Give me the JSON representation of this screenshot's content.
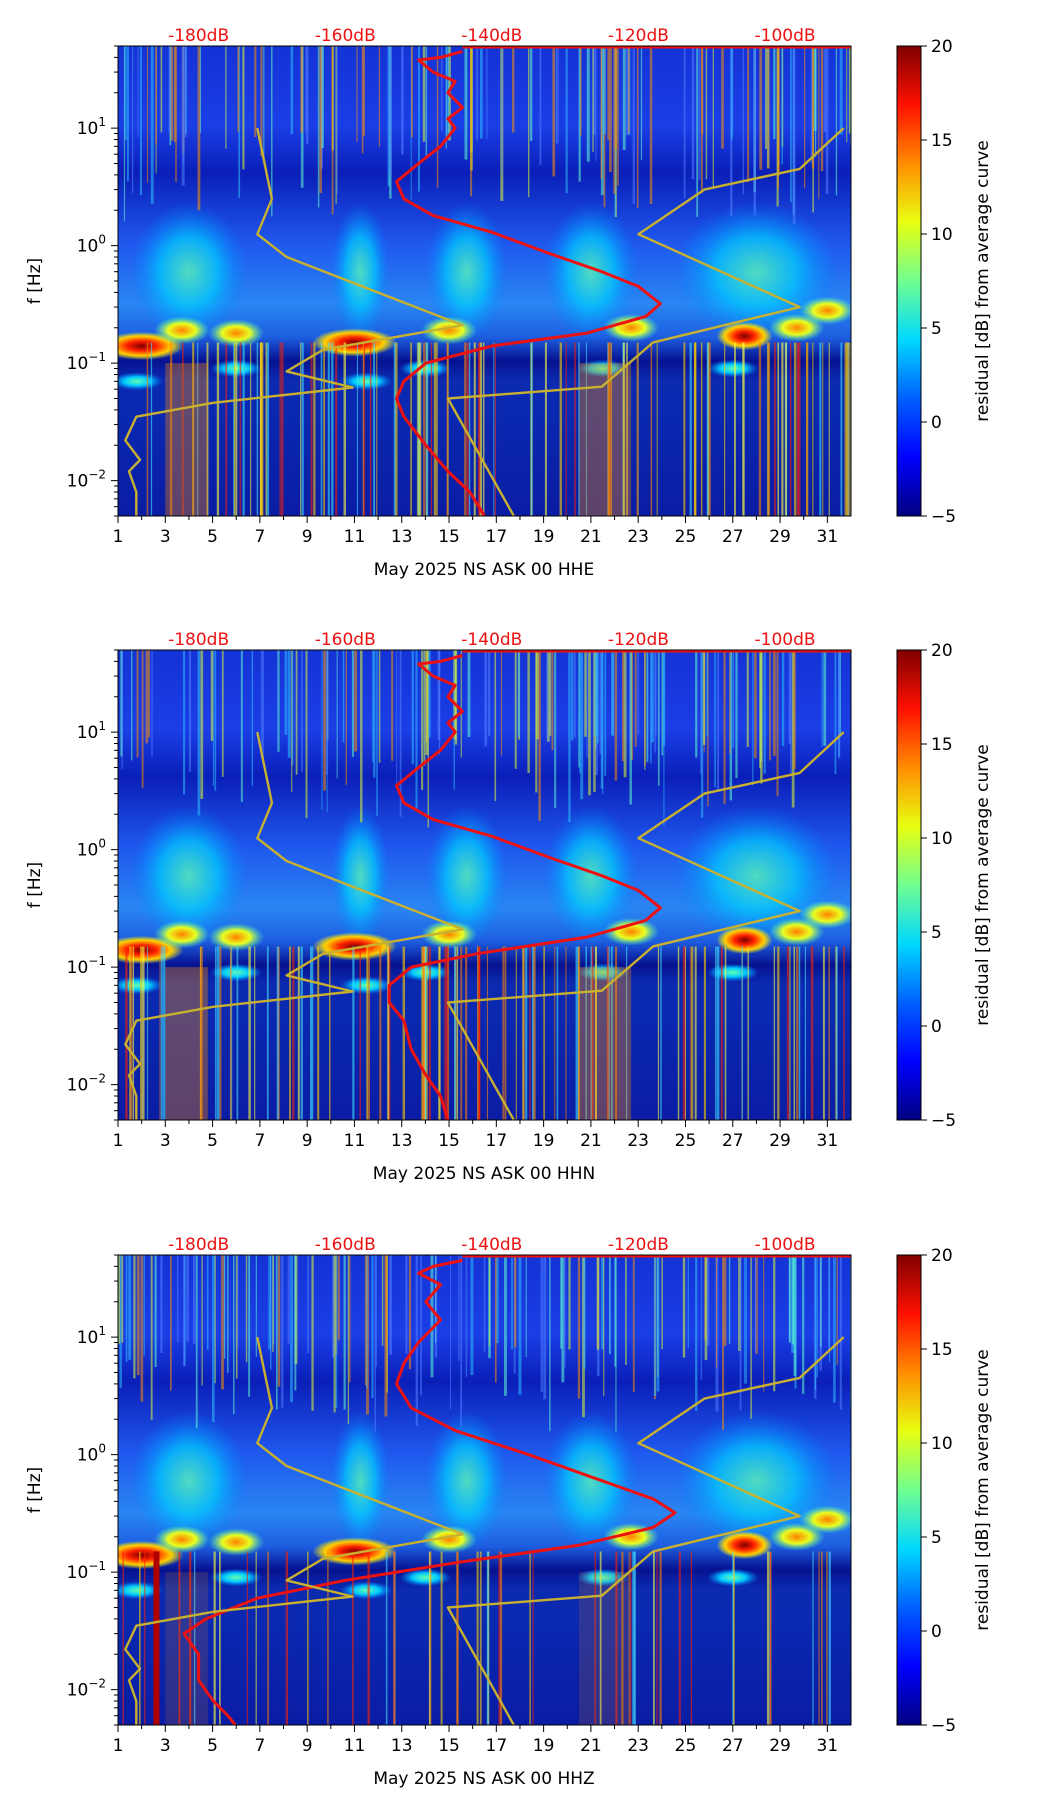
{
  "figure_title": "",
  "colors": {
    "psd_curve": "#ee1111",
    "noise_model": "#c8b030",
    "db_labels": "#ee1111",
    "colormap": [
      "#00007f",
      "#0000ff",
      "#00a0ff",
      "#00ffff",
      "#70ff90",
      "#ffff00",
      "#ff7f00",
      "#ff0000",
      "#7f0000"
    ]
  },
  "chart_data": [
    {
      "type": "heatmap",
      "channel": "HHE",
      "xlabel": "May 2025 NS ASK 00 HHE",
      "ylabel": "f [Hz]",
      "x_ticks": [
        "1",
        "3",
        "5",
        "7",
        "9",
        "11",
        "13",
        "15",
        "17",
        "19",
        "21",
        "23",
        "25",
        "27",
        "29",
        "31"
      ],
      "xlim": [
        1,
        32
      ],
      "y_scale": "log",
      "ylim": [
        0.005,
        50
      ],
      "y_ticks": [
        {
          "value": 10,
          "base": "10",
          "exp": "1"
        },
        {
          "value": 1,
          "base": "10",
          "exp": "0"
        },
        {
          "value": 0.1,
          "base": "10",
          "exp": "−1"
        },
        {
          "value": 0.01,
          "base": "10",
          "exp": "−2"
        }
      ],
      "top_axis_labels": [
        "-180dB",
        "-160dB",
        "-140dB",
        "-120dB",
        "-100dB"
      ],
      "top_axis_values": [
        -180,
        -160,
        -140,
        -120,
        -100
      ],
      "top_axis_range": [
        -191,
        -91
      ],
      "colorbar": {
        "label": "residual [dB] from average curve",
        "min": -5,
        "max": 20,
        "ticks": [
          "20",
          "15",
          "10",
          "5",
          "0",
          "−5"
        ],
        "tick_values": [
          20,
          15,
          10,
          5,
          0,
          -5
        ]
      },
      "series": [
        {
          "name": "average PSD",
          "color": "#ee1111",
          "points_db_hz": [
            [
              -144,
              45
            ],
            [
              -147,
              40
            ],
            [
              -150,
              38
            ],
            [
              -148,
              30
            ],
            [
              -145,
              25
            ],
            [
              -146,
              20
            ],
            [
              -144,
              15
            ],
            [
              -146,
              12
            ],
            [
              -145,
              10
            ],
            [
              -147,
              7
            ],
            [
              -150,
              5
            ],
            [
              -153,
              3.5
            ],
            [
              -152,
              2.5
            ],
            [
              -148,
              1.8
            ],
            [
              -140,
              1.3
            ],
            [
              -132,
              0.85
            ],
            [
              -125,
              0.6
            ],
            [
              -120,
              0.45
            ],
            [
              -117,
              0.32
            ],
            [
              -119,
              0.25
            ],
            [
              -127,
              0.18
            ],
            [
              -140,
              0.14
            ],
            [
              -149,
              0.1
            ],
            [
              -152,
              0.07
            ],
            [
              -153,
              0.05
            ],
            [
              -152,
              0.035
            ],
            [
              -149,
              0.02
            ],
            [
              -146,
              0.012
            ],
            [
              -143,
              0.008
            ],
            [
              -141,
              0.005
            ]
          ]
        },
        {
          "name": "noise model low",
          "color": "#c8b030",
          "points_db_hz": [
            [
              -188.5,
              0.005
            ],
            [
              -188.5,
              0.008
            ],
            [
              -189.5,
              0.012
            ],
            [
              -188,
              0.015
            ],
            [
              -190,
              0.022
            ],
            [
              -188.5,
              0.035
            ],
            [
              -178,
              0.046
            ],
            [
              -159,
              0.062
            ],
            [
              -168,
              0.085
            ],
            [
              -163,
              0.13
            ],
            [
              -144,
              0.21
            ],
            [
              -151,
              0.31
            ],
            [
              -168,
              0.8
            ],
            [
              -172,
              1.25
            ],
            [
              -170,
              2.5
            ],
            [
              -172,
              10
            ]
          ]
        },
        {
          "name": "noise model high",
          "color": "#c8b030",
          "points_db_hz": [
            [
              -137,
              0.005
            ],
            [
              -146,
              0.05
            ],
            [
              -125,
              0.063
            ],
            [
              -118,
              0.15
            ],
            [
              -107,
              0.22
            ],
            [
              -98,
              0.3
            ],
            [
              -120,
              1.25
            ],
            [
              -111,
              3
            ],
            [
              -98,
              4.5
            ],
            [
              -92,
              10
            ]
          ]
        }
      ]
    },
    {
      "type": "heatmap",
      "channel": "HHN",
      "xlabel": "May 2025 NS ASK 00 HHN",
      "ylabel": "f [Hz]",
      "x_ticks": [
        "1",
        "3",
        "5",
        "7",
        "9",
        "11",
        "13",
        "15",
        "17",
        "19",
        "21",
        "23",
        "25",
        "27",
        "29",
        "31"
      ],
      "xlim": [
        1,
        32
      ],
      "y_scale": "log",
      "ylim": [
        0.005,
        50
      ],
      "y_ticks": [
        {
          "value": 10,
          "base": "10",
          "exp": "1"
        },
        {
          "value": 1,
          "base": "10",
          "exp": "0"
        },
        {
          "value": 0.1,
          "base": "10",
          "exp": "−1"
        },
        {
          "value": 0.01,
          "base": "10",
          "exp": "−2"
        }
      ],
      "top_axis_labels": [
        "-180dB",
        "-160dB",
        "-140dB",
        "-120dB",
        "-100dB"
      ],
      "top_axis_values": [
        -180,
        -160,
        -140,
        -120,
        -100
      ],
      "top_axis_range": [
        -191,
        -91
      ],
      "colorbar": {
        "label": "residual [dB] from average curve",
        "min": -5,
        "max": 20,
        "ticks": [
          "20",
          "15",
          "10",
          "5",
          "0",
          "−5"
        ],
        "tick_values": [
          20,
          15,
          10,
          5,
          0,
          -5
        ]
      },
      "series": [
        {
          "name": "average PSD",
          "color": "#ee1111",
          "points_db_hz": [
            [
              -144,
              45
            ],
            [
              -147,
              40
            ],
            [
              -150,
              38
            ],
            [
              -148,
              30
            ],
            [
              -145,
              25
            ],
            [
              -146,
              20
            ],
            [
              -144,
              15
            ],
            [
              -146,
              12
            ],
            [
              -145,
              10
            ],
            [
              -147,
              7
            ],
            [
              -150,
              5
            ],
            [
              -153,
              3.5
            ],
            [
              -152,
              2.5
            ],
            [
              -148,
              1.8
            ],
            [
              -140,
              1.3
            ],
            [
              -132,
              0.85
            ],
            [
              -125,
              0.6
            ],
            [
              -120,
              0.45
            ],
            [
              -117,
              0.32
            ],
            [
              -119,
              0.25
            ],
            [
              -127,
              0.18
            ],
            [
              -142,
              0.13
            ],
            [
              -151,
              0.1
            ],
            [
              -154,
              0.07
            ],
            [
              -154,
              0.05
            ],
            [
              -152,
              0.035
            ],
            [
              -151,
              0.02
            ],
            [
              -149,
              0.012
            ],
            [
              -147,
              0.008
            ],
            [
              -146,
              0.005
            ]
          ]
        },
        {
          "name": "noise model low",
          "color": "#c8b030",
          "points_db_hz": [
            [
              -188.5,
              0.005
            ],
            [
              -188.5,
              0.008
            ],
            [
              -189.5,
              0.012
            ],
            [
              -188,
              0.015
            ],
            [
              -190,
              0.022
            ],
            [
              -188.5,
              0.035
            ],
            [
              -178,
              0.046
            ],
            [
              -159,
              0.062
            ],
            [
              -168,
              0.085
            ],
            [
              -163,
              0.13
            ],
            [
              -144,
              0.21
            ],
            [
              -151,
              0.31
            ],
            [
              -168,
              0.8
            ],
            [
              -172,
              1.25
            ],
            [
              -170,
              2.5
            ],
            [
              -172,
              10
            ]
          ]
        },
        {
          "name": "noise model high",
          "color": "#c8b030",
          "points_db_hz": [
            [
              -137,
              0.005
            ],
            [
              -146,
              0.05
            ],
            [
              -125,
              0.063
            ],
            [
              -118,
              0.15
            ],
            [
              -107,
              0.22
            ],
            [
              -98,
              0.3
            ],
            [
              -120,
              1.25
            ],
            [
              -111,
              3
            ],
            [
              -98,
              4.5
            ],
            [
              -92,
              10
            ]
          ]
        }
      ]
    },
    {
      "type": "heatmap",
      "channel": "HHZ",
      "xlabel": "May 2025 NS ASK 00 HHZ",
      "ylabel": "f [Hz]",
      "x_ticks": [
        "1",
        "3",
        "5",
        "7",
        "9",
        "11",
        "13",
        "15",
        "17",
        "19",
        "21",
        "23",
        "25",
        "27",
        "29",
        "31"
      ],
      "xlim": [
        1,
        32
      ],
      "y_scale": "log",
      "ylim": [
        0.005,
        50
      ],
      "y_ticks": [
        {
          "value": 10,
          "base": "10",
          "exp": "1"
        },
        {
          "value": 1,
          "base": "10",
          "exp": "0"
        },
        {
          "value": 0.1,
          "base": "10",
          "exp": "−1"
        },
        {
          "value": 0.01,
          "base": "10",
          "exp": "−2"
        }
      ],
      "top_axis_labels": [
        "-180dB",
        "-160dB",
        "-140dB",
        "-120dB",
        "-100dB"
      ],
      "top_axis_values": [
        -180,
        -160,
        -140,
        -120,
        -100
      ],
      "top_axis_range": [
        -191,
        -91
      ],
      "colorbar": {
        "label": "residual [dB] from average curve",
        "min": -5,
        "max": 20,
        "ticks": [
          "20",
          "15",
          "10",
          "5",
          "0",
          "−5"
        ],
        "tick_values": [
          20,
          15,
          10,
          5,
          0,
          -5
        ]
      },
      "series": [
        {
          "name": "average PSD",
          "color": "#ee1111",
          "points_db_hz": [
            [
              -144,
              45
            ],
            [
              -148,
              40
            ],
            [
              -150,
              35
            ],
            [
              -147,
              28
            ],
            [
              -149,
              20
            ],
            [
              -147,
              14
            ],
            [
              -150,
              9
            ],
            [
              -152,
              6
            ],
            [
              -153,
              4
            ],
            [
              -151,
              2.5
            ],
            [
              -145,
              1.6
            ],
            [
              -135,
              1.0
            ],
            [
              -125,
              0.6
            ],
            [
              -118,
              0.42
            ],
            [
              -115,
              0.32
            ],
            [
              -118,
              0.24
            ],
            [
              -128,
              0.17
            ],
            [
              -145,
              0.12
            ],
            [
              -160,
              0.085
            ],
            [
              -172,
              0.06
            ],
            [
              -179,
              0.04
            ],
            [
              -182,
              0.03
            ],
            [
              -180,
              0.02
            ],
            [
              -180,
              0.012
            ],
            [
              -178,
              0.008
            ],
            [
              -176,
              0.006
            ],
            [
              -175,
              0.005
            ]
          ]
        },
        {
          "name": "noise model low",
          "color": "#c8b030",
          "points_db_hz": [
            [
              -188.5,
              0.005
            ],
            [
              -188.5,
              0.008
            ],
            [
              -189.5,
              0.012
            ],
            [
              -188,
              0.015
            ],
            [
              -190,
              0.022
            ],
            [
              -188.5,
              0.035
            ],
            [
              -178,
              0.046
            ],
            [
              -159,
              0.062
            ],
            [
              -168,
              0.085
            ],
            [
              -163,
              0.13
            ],
            [
              -144,
              0.21
            ],
            [
              -151,
              0.31
            ],
            [
              -168,
              0.8
            ],
            [
              -172,
              1.25
            ],
            [
              -170,
              2.5
            ],
            [
              -172,
              10
            ]
          ]
        },
        {
          "name": "noise model high",
          "color": "#c8b030",
          "points_db_hz": [
            [
              -137,
              0.005
            ],
            [
              -146,
              0.05
            ],
            [
              -125,
              0.063
            ],
            [
              -118,
              0.15
            ],
            [
              -107,
              0.22
            ],
            [
              -98,
              0.3
            ],
            [
              -120,
              1.25
            ],
            [
              -111,
              3
            ],
            [
              -98,
              4.5
            ],
            [
              -92,
              10
            ]
          ]
        }
      ]
    }
  ]
}
